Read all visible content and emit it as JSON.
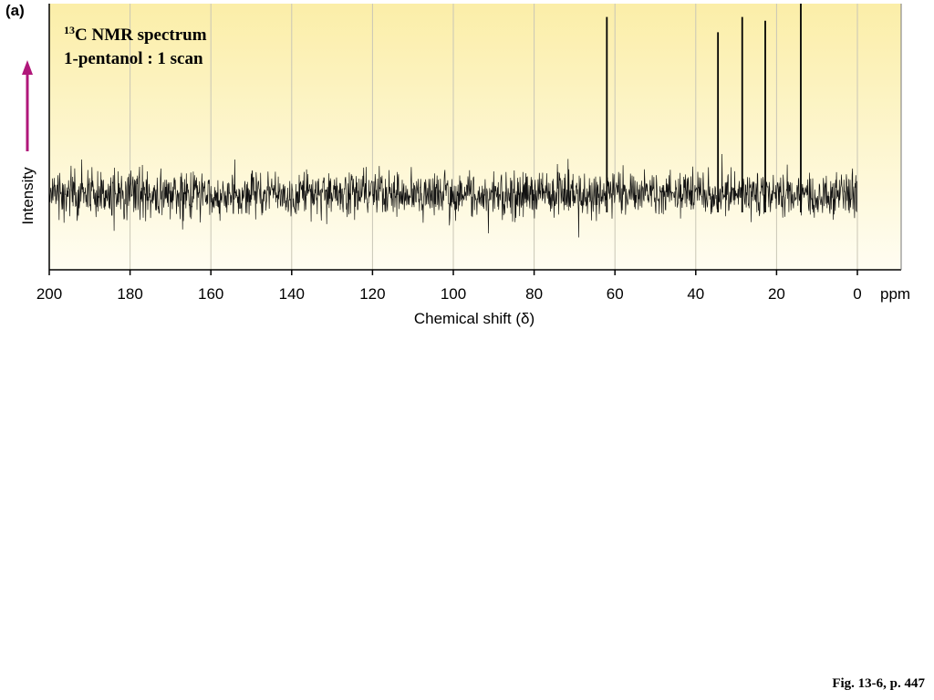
{
  "panel_label": "(a)",
  "figure_caption": "Fig. 13-6, p. 447",
  "colors": {
    "background_top": "#fbeea8",
    "background_bottom": "#fffdf2",
    "noise": "#111111",
    "arrow": "#b0177a"
  },
  "chart_data": {
    "type": "line",
    "title_superscript": "13",
    "title_main": "C NMR spectrum",
    "subtitle": "1-pentanol : 1 scan",
    "xlabel": "Chemical shift (δ)",
    "x_unit": "ppm",
    "ylabel": "Intensity",
    "xlim": [
      200,
      0
    ],
    "x_reversed": true,
    "x_ticks": [
      200,
      180,
      160,
      140,
      120,
      100,
      80,
      60,
      40,
      20,
      0
    ],
    "grid": true,
    "noise_region": [
      200,
      0
    ],
    "peaks": [
      {
        "shift": 62.0,
        "height": 0.93
      },
      {
        "shift": 34.5,
        "height": 0.85
      },
      {
        "shift": 28.5,
        "height": 0.93
      },
      {
        "shift": 22.8,
        "height": 0.91
      },
      {
        "shift": 14.0,
        "height": 1.0
      }
    ]
  }
}
